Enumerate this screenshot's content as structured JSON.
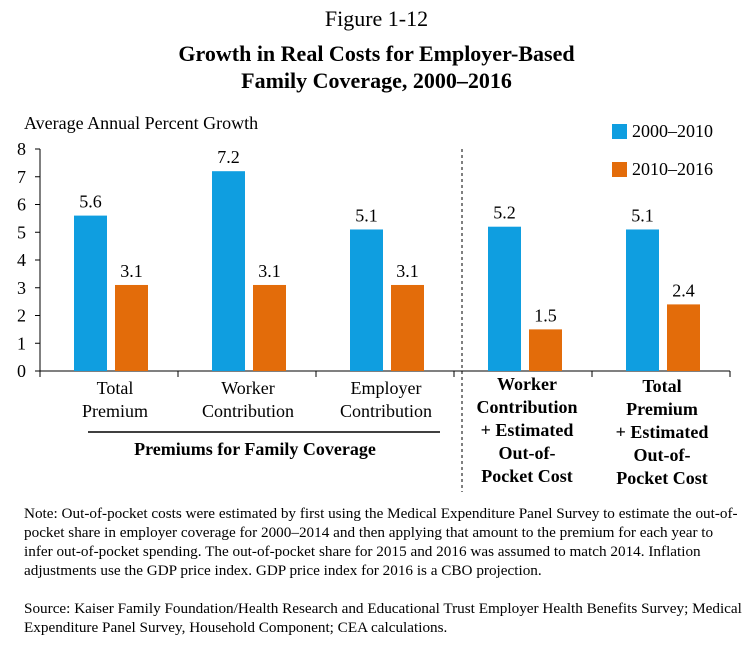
{
  "figure_label": "Figure 1-12",
  "chart_data": {
    "type": "bar",
    "title_lines": [
      "Growth in Real Costs for Employer-Based",
      "Family Coverage, 2000–2016"
    ],
    "ylabel": "Average Annual Percent Growth",
    "ylim": [
      0,
      8
    ],
    "yticks": [
      0,
      1,
      2,
      3,
      4,
      5,
      6,
      7,
      8
    ],
    "grid": false,
    "legend_position": "top-right",
    "categories": [
      [
        "Total",
        "Premium"
      ],
      [
        "Worker",
        "Contribution"
      ],
      [
        "Employer",
        "Contribution"
      ],
      [
        "Worker",
        "Contribution",
        "+ Estimated",
        "Out-of-",
        "Pocket Cost"
      ],
      [
        "Total",
        "Premium",
        "+ Estimated",
        "Out-of-",
        "Pocket Cost"
      ]
    ],
    "series": [
      {
        "name": "2000–2010",
        "color": "#0f9ee0",
        "values": [
          5.6,
          7.2,
          5.1,
          5.2,
          5.1
        ]
      },
      {
        "name": "2010–2016",
        "color": "#e36c0a",
        "values": [
          3.1,
          3.1,
          3.1,
          1.5,
          2.4
        ]
      }
    ],
    "group_label": "Premiums for Family Coverage"
  },
  "note": "Note: Out-of-pocket costs were estimated by first using the Medical Expenditure Panel Survey to estimate the out-of-pocket share in employer coverage for 2000–2014 and then applying that amount to the premium for each year to infer out-of-pocket spending. The out-of-pocket share for 2015 and 2016 was assumed to match 2014. Inflation adjustments use the GDP price index. GDP price index for 2016 is a CBO projection.",
  "source": "Source: Kaiser Family Foundation/Health Research and Educational Trust Employer Health Benefits Survey; Medical Expenditure Panel Survey, Household Component; CEA calculations."
}
